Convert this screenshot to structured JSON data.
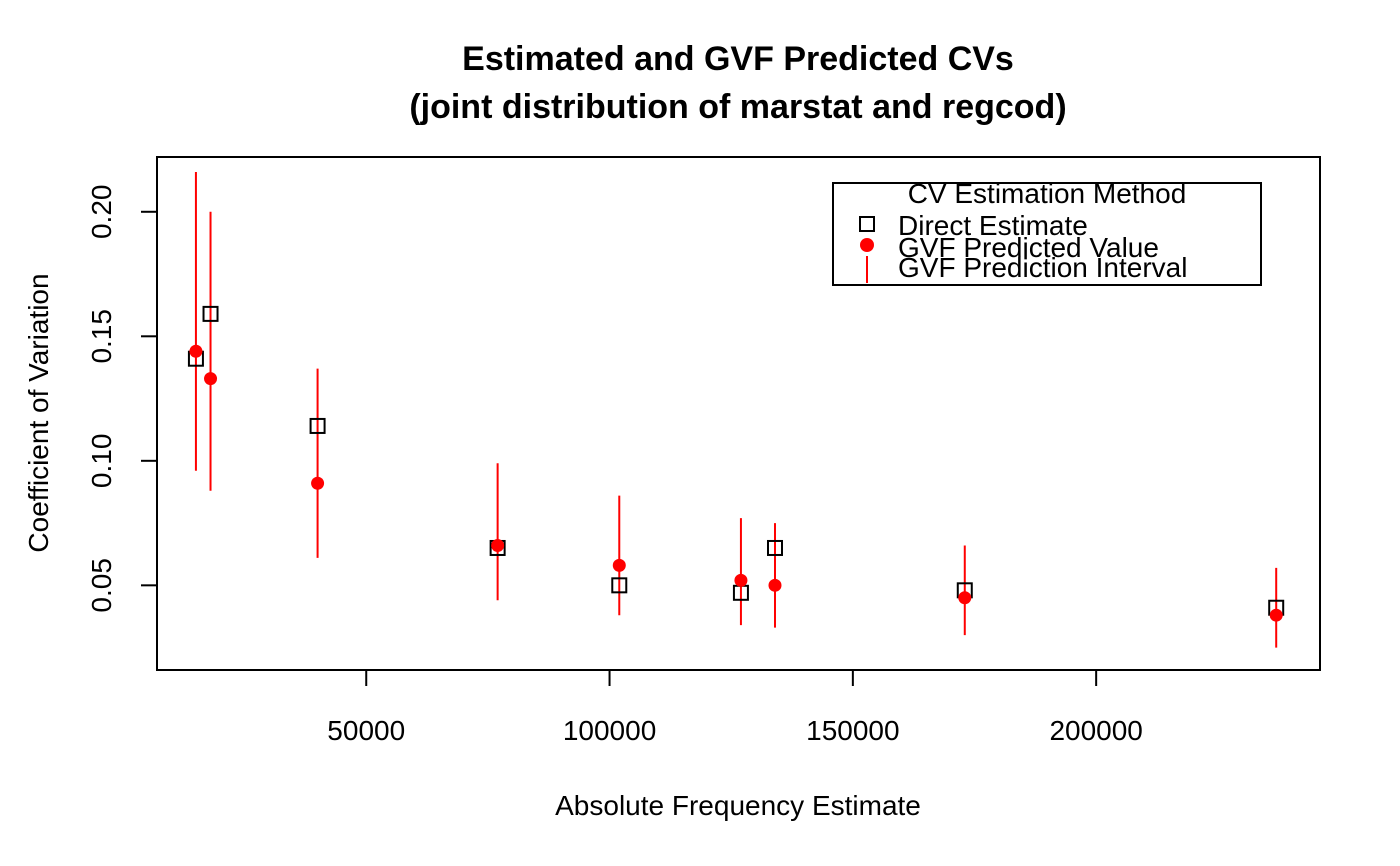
{
  "chart_data": {
    "type": "scatter",
    "title": "Estimated and GVF Predicted CVs",
    "subtitle": "(joint distribution of marstat and regcod)",
    "xlabel": "Absolute Frequency Estimate",
    "ylabel": "Coefficient of Variation",
    "xlim": [
      7000,
      246000
    ],
    "ylim": [
      0.016,
      0.222
    ],
    "x_ticks": [
      50000,
      100000,
      150000,
      200000
    ],
    "y_ticks": [
      0.05,
      0.1,
      0.15,
      0.2
    ],
    "x_tick_labels": [
      "50000",
      "100000",
      "150000",
      "200000"
    ],
    "y_tick_labels": [
      "0.05",
      "0.10",
      "0.15",
      "0.20"
    ],
    "grid": false,
    "legend": {
      "title": "CV Estimation Method",
      "position": "top-right",
      "entries": [
        "Direct Estimate",
        "GVF Predicted Value",
        "GVF Prediction Interval"
      ]
    },
    "colors": {
      "direct": "#000000",
      "predicted": "#ff0000",
      "interval": "#ff0000"
    },
    "series": [
      {
        "name": "Direct Estimate",
        "marker": "open-square",
        "points": [
          {
            "x": 15000,
            "y": 0.141
          },
          {
            "x": 18000,
            "y": 0.159
          },
          {
            "x": 40000,
            "y": 0.114
          },
          {
            "x": 77000,
            "y": 0.065
          },
          {
            "x": 102000,
            "y": 0.05
          },
          {
            "x": 127000,
            "y": 0.047
          },
          {
            "x": 134000,
            "y": 0.065
          },
          {
            "x": 173000,
            "y": 0.048
          },
          {
            "x": 237000,
            "y": 0.041
          }
        ]
      },
      {
        "name": "GVF Predicted Value",
        "marker": "filled-circle",
        "points": [
          {
            "x": 15000,
            "y": 0.144
          },
          {
            "x": 18000,
            "y": 0.133
          },
          {
            "x": 40000,
            "y": 0.091
          },
          {
            "x": 77000,
            "y": 0.066
          },
          {
            "x": 102000,
            "y": 0.058
          },
          {
            "x": 127000,
            "y": 0.052
          },
          {
            "x": 134000,
            "y": 0.05
          },
          {
            "x": 173000,
            "y": 0.045
          },
          {
            "x": 237000,
            "y": 0.038
          }
        ]
      },
      {
        "name": "GVF Prediction Interval",
        "marker": "vertical-line",
        "intervals": [
          {
            "x": 15000,
            "low": 0.096,
            "high": 0.216
          },
          {
            "x": 18000,
            "low": 0.088,
            "high": 0.2
          },
          {
            "x": 40000,
            "low": 0.061,
            "high": 0.137
          },
          {
            "x": 77000,
            "low": 0.044,
            "high": 0.099
          },
          {
            "x": 102000,
            "low": 0.038,
            "high": 0.086
          },
          {
            "x": 127000,
            "low": 0.034,
            "high": 0.077
          },
          {
            "x": 134000,
            "low": 0.033,
            "high": 0.075
          },
          {
            "x": 173000,
            "low": 0.03,
            "high": 0.066
          },
          {
            "x": 237000,
            "low": 0.025,
            "high": 0.057
          }
        ]
      }
    ]
  }
}
